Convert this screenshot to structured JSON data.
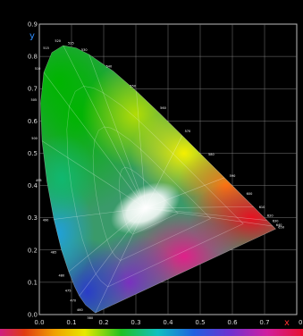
{
  "colors": {
    "background": "#000000",
    "grid": "#7a7a7a",
    "axis_label_y": "#2f8fff",
    "axis_label_x": "#ff3030",
    "tick_text": "#dcdcdc",
    "wavelength_text": "#ffffff"
  },
  "chart_data": {
    "type": "scatter",
    "title": "",
    "xlabel": "x",
    "ylabel": "y",
    "xlim": [
      0.0,
      0.8
    ],
    "ylim": [
      0.0,
      0.9
    ],
    "x_ticks": [
      "0.0",
      "0.1",
      "0.2",
      "0.3",
      "0.4",
      "0.5",
      "0.6",
      "0.7",
      "0.8"
    ],
    "y_ticks": [
      "0.0",
      "0.1",
      "0.2",
      "0.3",
      "0.4",
      "0.5",
      "0.6",
      "0.7",
      "0.8",
      "0.9"
    ],
    "grid": true,
    "spectral_locus": [
      {
        "label": "380",
        "x": 0.1741,
        "y": 0.005
      },
      {
        "label": "460",
        "x": 0.144,
        "y": 0.0297
      },
      {
        "label": "470",
        "x": 0.1241,
        "y": 0.0578
      },
      {
        "label": "475",
        "x": 0.1096,
        "y": 0.0868
      },
      {
        "label": "480",
        "x": 0.0913,
        "y": 0.1327
      },
      {
        "label": "485",
        "x": 0.0687,
        "y": 0.2007
      },
      {
        "label": "490",
        "x": 0.0454,
        "y": 0.295
      },
      {
        "label": "495",
        "x": 0.0235,
        "y": 0.4127
      },
      {
        "label": "500",
        "x": 0.0082,
        "y": 0.5384
      },
      {
        "label": "505",
        "x": 0.0039,
        "y": 0.6548
      },
      {
        "label": "510",
        "x": 0.0139,
        "y": 0.7502
      },
      {
        "label": "515",
        "x": 0.0389,
        "y": 0.812
      },
      {
        "label": "520",
        "x": 0.0743,
        "y": 0.8338
      },
      {
        "label": "525",
        "x": 0.1142,
        "y": 0.8262
      },
      {
        "label": "530",
        "x": 0.1547,
        "y": 0.8059
      },
      {
        "label": "540",
        "x": 0.2296,
        "y": 0.7543
      },
      {
        "label": "550",
        "x": 0.3016,
        "y": 0.6923
      },
      {
        "label": "560",
        "x": 0.3731,
        "y": 0.6245
      },
      {
        "label": "570",
        "x": 0.4441,
        "y": 0.5547
      },
      {
        "label": "580",
        "x": 0.5125,
        "y": 0.4866
      },
      {
        "label": "590",
        "x": 0.5752,
        "y": 0.4242
      },
      {
        "label": "600",
        "x": 0.627,
        "y": 0.3725
      },
      {
        "label": "610",
        "x": 0.6658,
        "y": 0.334
      },
      {
        "label": "620",
        "x": 0.6915,
        "y": 0.3083
      },
      {
        "label": "630",
        "x": 0.7079,
        "y": 0.292
      },
      {
        "label": "640",
        "x": 0.719,
        "y": 0.2809
      },
      {
        "label": "650",
        "x": 0.726,
        "y": 0.274
      },
      {
        "label": "700",
        "x": 0.7347,
        "y": 0.2653
      }
    ]
  }
}
